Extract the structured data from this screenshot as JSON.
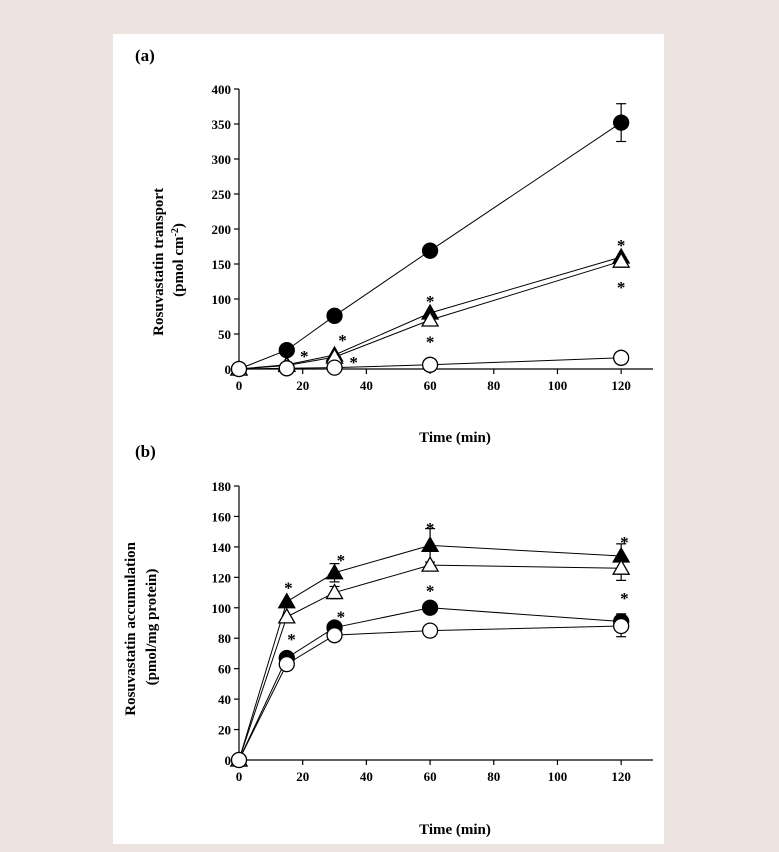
{
  "chart_data": [
    {
      "type": "line",
      "panel_label": "(a)",
      "ylabel_line1": "Rosuvastatin transport",
      "ylabel_line2_pre": "(pmol cm",
      "ylabel_line2_sup": "-2",
      "ylabel_line2_post": ")",
      "xlabel": "Time (min)",
      "xlim": [
        0,
        130
      ],
      "ylim": [
        0,
        400
      ],
      "xticks": [
        0,
        20,
        40,
        60,
        80,
        100,
        120
      ],
      "yticks": [
        0,
        50,
        100,
        150,
        200,
        250,
        300,
        350,
        400
      ],
      "grid": false,
      "legend": "none",
      "series": [
        {
          "marker": "filled-circle",
          "x": [
            0,
            15,
            30,
            60,
            120
          ],
          "y": [
            0,
            27,
            76,
            169,
            352
          ],
          "err": [
            0,
            0,
            0,
            0,
            27
          ]
        },
        {
          "marker": "filled-triangle",
          "x": [
            0,
            15,
            30,
            60,
            120
          ],
          "y": [
            0,
            6,
            20,
            80,
            160
          ],
          "err": [
            0,
            0,
            0,
            0,
            0
          ]
        },
        {
          "marker": "open-triangle",
          "x": [
            0,
            15,
            30,
            60,
            120
          ],
          "y": [
            0,
            5,
            17,
            70,
            154
          ],
          "err": [
            0,
            0,
            0,
            0,
            0
          ]
        },
        {
          "marker": "open-circle",
          "x": [
            0,
            15,
            30,
            60,
            120
          ],
          "y": [
            0,
            1,
            2,
            6,
            16
          ],
          "err": [
            0,
            0,
            0,
            0,
            0
          ]
        }
      ],
      "annotations": [
        {
          "text": "*",
          "x": 20.5,
          "y": 24
        },
        {
          "text": "*",
          "x": 36,
          "y": 16
        },
        {
          "text": "*",
          "x": 32.5,
          "y": 47
        },
        {
          "text": "*",
          "x": 60,
          "y": 103
        },
        {
          "text": "*",
          "x": 60,
          "y": 45
        },
        {
          "text": "*",
          "x": 120,
          "y": 183
        },
        {
          "text": "*",
          "x": 120,
          "y": 123
        }
      ]
    },
    {
      "type": "line",
      "panel_label": "(b)",
      "ylabel_line1": "Rosuvastatin accumulation",
      "ylabel_line2": "(pmol/mg protein)",
      "xlabel": "Time (min)",
      "xlim": [
        0,
        130
      ],
      "ylim": [
        0,
        180
      ],
      "xticks": [
        0,
        20,
        40,
        60,
        80,
        100,
        120
      ],
      "yticks": [
        0,
        20,
        40,
        60,
        80,
        100,
        120,
        140,
        160,
        180
      ],
      "grid": false,
      "legend": "none",
      "series": [
        {
          "marker": "filled-triangle",
          "x": [
            0,
            15,
            30,
            60,
            120
          ],
          "y": [
            0,
            104,
            123,
            141,
            134
          ],
          "err": [
            0,
            0,
            6,
            11,
            8
          ]
        },
        {
          "marker": "open-triangle",
          "x": [
            0,
            15,
            30,
            60,
            120
          ],
          "y": [
            0,
            94,
            110,
            128,
            126
          ],
          "err": [
            0,
            0,
            4,
            0,
            8
          ]
        },
        {
          "marker": "filled-circle",
          "x": [
            0,
            15,
            30,
            60,
            120
          ],
          "y": [
            0,
            67,
            87,
            100,
            91
          ],
          "err": [
            0,
            0,
            0,
            0,
            5
          ]
        },
        {
          "marker": "open-circle",
          "x": [
            0,
            15,
            30,
            60,
            120
          ],
          "y": [
            0,
            63,
            82,
            85,
            88
          ],
          "err": [
            0,
            0,
            0,
            0,
            7
          ]
        }
      ],
      "annotations": [
        {
          "text": "*",
          "x": 15.5,
          "y": 116
        },
        {
          "text": "*",
          "x": 16.5,
          "y": 82
        },
        {
          "text": "*",
          "x": 32,
          "y": 134
        },
        {
          "text": "*",
          "x": 32,
          "y": 97
        },
        {
          "text": "*",
          "x": 60,
          "y": 155
        },
        {
          "text": "*",
          "x": 60,
          "y": 114
        },
        {
          "text": "*",
          "x": 121,
          "y": 146
        },
        {
          "text": "*",
          "x": 121,
          "y": 109
        }
      ]
    }
  ]
}
